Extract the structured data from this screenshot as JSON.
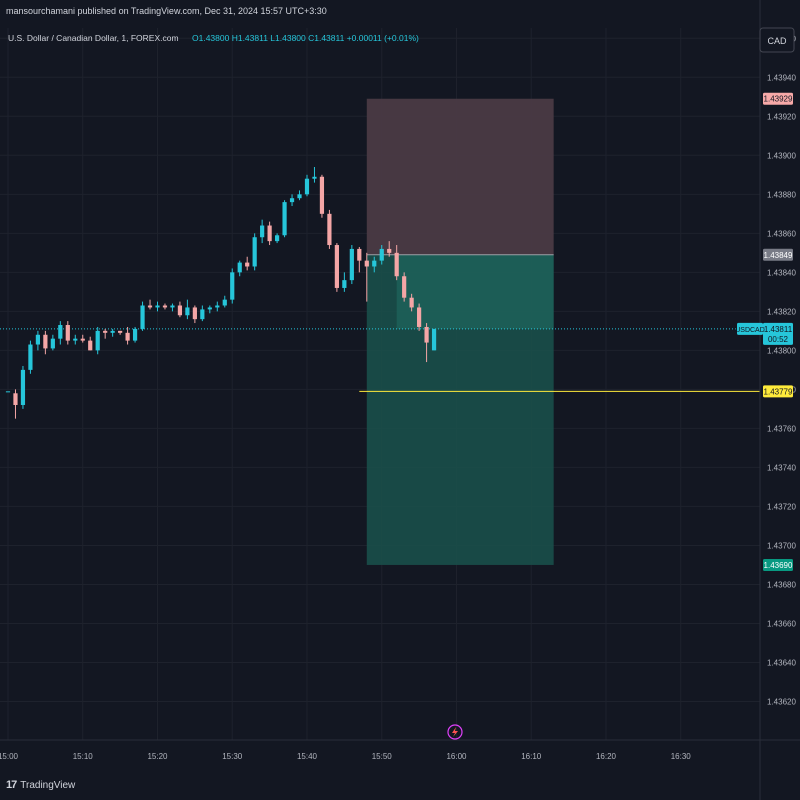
{
  "publisher_line": "mansourchamani published on TradingView.com, Dec 31, 2024 15:57 UTC+3:30",
  "footer_brand": "TradingView",
  "colors": {
    "background": "#131722",
    "grid": "#1e222d",
    "text": "#b2b5be",
    "up": "#26c6da",
    "down": "#f4a6a6",
    "profit_zone": "#1a4f4a",
    "loss_zone": "#4a3a44",
    "alert_line": "#ffeb3b",
    "current_price": "#26c6da"
  },
  "chart_data": {
    "type": "candlestick",
    "symbol_line": {
      "name": "U.S. Dollar / Canadian Dollar, 1, FOREX.com",
      "ohlc": "O1.43800  H1.43811  L1.43800  C1.43811  +0.00011 (+0.01%)"
    },
    "currency": "CAD",
    "y_ticks": [
      "1.43960",
      "1.43940",
      "1.43920",
      "1.43900",
      "1.43880",
      "1.43860",
      "1.43840",
      "1.43820",
      "1.43800",
      "1.43780",
      "1.43760",
      "1.43740",
      "1.43720",
      "1.43700",
      "1.43680",
      "1.43660",
      "1.43640",
      "1.43620"
    ],
    "ylim": [
      1.4361,
      1.43975
    ],
    "x_ticks": [
      "15:00",
      "15:10",
      "15:20",
      "15:30",
      "15:40",
      "15:50",
      "16:00",
      "16:10",
      "16:20",
      "16:30"
    ],
    "x_start_minute": 0,
    "x_end_minute": 99,
    "candles": [
      {
        "t": 0,
        "o": 1.43779,
        "h": 1.43779,
        "l": 1.43779,
        "c": 1.43779
      },
      {
        "t": 1,
        "o": 1.43778,
        "h": 1.4378,
        "l": 1.43765,
        "c": 1.43772
      },
      {
        "t": 2,
        "o": 1.43772,
        "h": 1.43792,
        "l": 1.4377,
        "c": 1.4379
      },
      {
        "t": 3,
        "o": 1.4379,
        "h": 1.43805,
        "l": 1.43788,
        "c": 1.43803
      },
      {
        "t": 4,
        "o": 1.43803,
        "h": 1.4381,
        "l": 1.438,
        "c": 1.43808
      },
      {
        "t": 5,
        "o": 1.43808,
        "h": 1.4381,
        "l": 1.43798,
        "c": 1.43801
      },
      {
        "t": 6,
        "o": 1.43801,
        "h": 1.43808,
        "l": 1.438,
        "c": 1.43806
      },
      {
        "t": 7,
        "o": 1.43806,
        "h": 1.43815,
        "l": 1.43803,
        "c": 1.43813
      },
      {
        "t": 8,
        "o": 1.43813,
        "h": 1.43815,
        "l": 1.43803,
        "c": 1.43805
      },
      {
        "t": 9,
        "o": 1.43805,
        "h": 1.43808,
        "l": 1.43803,
        "c": 1.43806
      },
      {
        "t": 10,
        "o": 1.43806,
        "h": 1.43808,
        "l": 1.43804,
        "c": 1.43805
      },
      {
        "t": 11,
        "o": 1.43805,
        "h": 1.43807,
        "l": 1.438,
        "c": 1.438
      },
      {
        "t": 12,
        "o": 1.438,
        "h": 1.43812,
        "l": 1.43798,
        "c": 1.4381
      },
      {
        "t": 13,
        "o": 1.4381,
        "h": 1.43811,
        "l": 1.43806,
        "c": 1.43809
      },
      {
        "t": 14,
        "o": 1.43809,
        "h": 1.43811,
        "l": 1.43807,
        "c": 1.4381
      },
      {
        "t": 15,
        "o": 1.4381,
        "h": 1.4381,
        "l": 1.43808,
        "c": 1.43809
      },
      {
        "t": 16,
        "o": 1.43809,
        "h": 1.43812,
        "l": 1.43803,
        "c": 1.43805
      },
      {
        "t": 17,
        "o": 1.43805,
        "h": 1.43812,
        "l": 1.43804,
        "c": 1.43811
      },
      {
        "t": 18,
        "o": 1.43811,
        "h": 1.43825,
        "l": 1.4381,
        "c": 1.43823
      },
      {
        "t": 19,
        "o": 1.43823,
        "h": 1.43826,
        "l": 1.43821,
        "c": 1.43822
      },
      {
        "t": 20,
        "o": 1.43822,
        "h": 1.43825,
        "l": 1.4382,
        "c": 1.43823
      },
      {
        "t": 21,
        "o": 1.43823,
        "h": 1.43824,
        "l": 1.43821,
        "c": 1.43822
      },
      {
        "t": 22,
        "o": 1.43822,
        "h": 1.43824,
        "l": 1.4382,
        "c": 1.43823
      },
      {
        "t": 23,
        "o": 1.43823,
        "h": 1.43825,
        "l": 1.43817,
        "c": 1.43818
      },
      {
        "t": 24,
        "o": 1.43818,
        "h": 1.43826,
        "l": 1.43816,
        "c": 1.43822
      },
      {
        "t": 25,
        "o": 1.43822,
        "h": 1.43823,
        "l": 1.43814,
        "c": 1.43816
      },
      {
        "t": 26,
        "o": 1.43816,
        "h": 1.43823,
        "l": 1.43815,
        "c": 1.43821
      },
      {
        "t": 27,
        "o": 1.43821,
        "h": 1.43823,
        "l": 1.43819,
        "c": 1.43822
      },
      {
        "t": 28,
        "o": 1.43822,
        "h": 1.43825,
        "l": 1.4382,
        "c": 1.43823
      },
      {
        "t": 29,
        "o": 1.43823,
        "h": 1.43828,
        "l": 1.43822,
        "c": 1.43826
      },
      {
        "t": 30,
        "o": 1.43826,
        "h": 1.43842,
        "l": 1.43824,
        "c": 1.4384
      },
      {
        "t": 31,
        "o": 1.4384,
        "h": 1.43846,
        "l": 1.43838,
        "c": 1.43845
      },
      {
        "t": 32,
        "o": 1.43845,
        "h": 1.43848,
        "l": 1.43841,
        "c": 1.43843
      },
      {
        "t": 33,
        "o": 1.43843,
        "h": 1.4386,
        "l": 1.43841,
        "c": 1.43858
      },
      {
        "t": 34,
        "o": 1.43858,
        "h": 1.43867,
        "l": 1.43855,
        "c": 1.43864
      },
      {
        "t": 35,
        "o": 1.43864,
        "h": 1.43866,
        "l": 1.43854,
        "c": 1.43856
      },
      {
        "t": 36,
        "o": 1.43856,
        "h": 1.4386,
        "l": 1.43855,
        "c": 1.43859
      },
      {
        "t": 37,
        "o": 1.43859,
        "h": 1.43877,
        "l": 1.43858,
        "c": 1.43876
      },
      {
        "t": 38,
        "o": 1.43876,
        "h": 1.4388,
        "l": 1.43874,
        "c": 1.43878
      },
      {
        "t": 39,
        "o": 1.43878,
        "h": 1.43882,
        "l": 1.43877,
        "c": 1.4388
      },
      {
        "t": 40,
        "o": 1.4388,
        "h": 1.4389,
        "l": 1.43879,
        "c": 1.43888
      },
      {
        "t": 41,
        "o": 1.43888,
        "h": 1.43894,
        "l": 1.43886,
        "c": 1.43889
      },
      {
        "t": 42,
        "o": 1.43889,
        "h": 1.4389,
        "l": 1.43868,
        "c": 1.4387
      },
      {
        "t": 43,
        "o": 1.4387,
        "h": 1.43872,
        "l": 1.43852,
        "c": 1.43854
      },
      {
        "t": 44,
        "o": 1.43854,
        "h": 1.43855,
        "l": 1.4383,
        "c": 1.43832
      },
      {
        "t": 45,
        "o": 1.43832,
        "h": 1.4384,
        "l": 1.4383,
        "c": 1.43836
      },
      {
        "t": 46,
        "o": 1.43836,
        "h": 1.43854,
        "l": 1.43834,
        "c": 1.43852
      },
      {
        "t": 47,
        "o": 1.43852,
        "h": 1.43853,
        "l": 1.4384,
        "c": 1.43846
      },
      {
        "t": 48,
        "o": 1.43846,
        "h": 1.4385,
        "l": 1.43825,
        "c": 1.43843
      },
      {
        "t": 49,
        "o": 1.43843,
        "h": 1.43848,
        "l": 1.4384,
        "c": 1.43846
      },
      {
        "t": 50,
        "o": 1.43846,
        "h": 1.43854,
        "l": 1.43844,
        "c": 1.43852
      },
      {
        "t": 51,
        "o": 1.43852,
        "h": 1.43856,
        "l": 1.43848,
        "c": 1.4385
      },
      {
        "t": 52,
        "o": 1.4385,
        "h": 1.43854,
        "l": 1.43836,
        "c": 1.43838
      },
      {
        "t": 53,
        "o": 1.43838,
        "h": 1.4384,
        "l": 1.43825,
        "c": 1.43827
      },
      {
        "t": 54,
        "o": 1.43827,
        "h": 1.43829,
        "l": 1.4382,
        "c": 1.43822
      },
      {
        "t": 55,
        "o": 1.43822,
        "h": 1.43824,
        "l": 1.4381,
        "c": 1.43812
      },
      {
        "t": 56,
        "o": 1.43812,
        "h": 1.43814,
        "l": 1.43794,
        "c": 1.43804
      },
      {
        "t": 57,
        "o": 1.438,
        "h": 1.43811,
        "l": 1.438,
        "c": 1.43811
      }
    ],
    "current_price": {
      "value": 1.43811,
      "symbol": "USDCAD",
      "label": "1.43811",
      "countdown": "00:52"
    },
    "alert_line": {
      "value": 1.43779,
      "label": "1.43779",
      "from_minute": 47
    },
    "position": {
      "type": "short",
      "entry": 1.43849,
      "stop": 1.43929,
      "target": 1.4369,
      "from_minute": 48,
      "to_minute": 73,
      "entry_label": "1.43849",
      "stop_label": "1.43929",
      "target_label": "1.43690",
      "active_from_minute": 52
    }
  }
}
